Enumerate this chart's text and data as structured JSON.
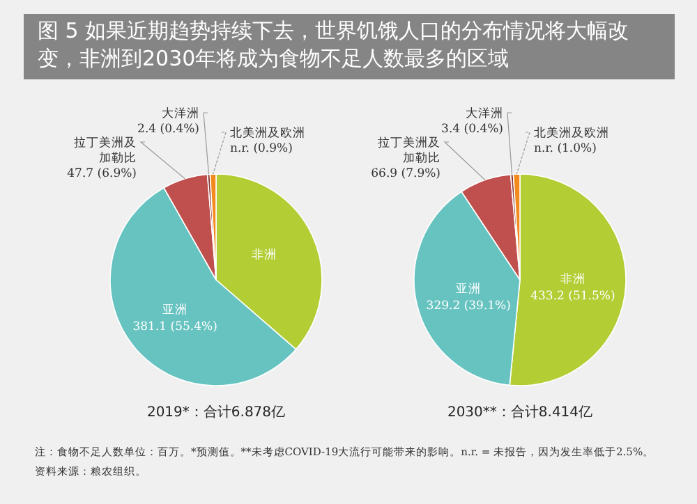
{
  "chart_data": [
    {
      "type": "other",
      "title": "图 5  如果近期趋势持续下去，世界饥饿人口的分布情况将大幅改变，非洲到2030年将成为食物不足人数最多的区域"
    },
    {
      "type": "pie",
      "title": "2019*：合计6.878亿",
      "categories": [
        "非洲",
        "亚洲",
        "拉丁美洲及加勒比",
        "大洋洲",
        "北美洲及欧洲"
      ],
      "values": [
        36.4,
        55.4,
        6.9,
        0.4,
        0.9
      ],
      "colors": [
        "#b3cd35",
        "#67c3c0",
        "#c0504d",
        "#8b3a3a",
        "#f28a1e"
      ],
      "value_labels": [
        null,
        "381.1 (55.4%)",
        "47.7 (6.9%)",
        "2.4 (0.4%)",
        "n.r. (0.9%)"
      ]
    },
    {
      "type": "pie",
      "title": "2030**：合计8.414亿",
      "categories": [
        "非洲",
        "亚洲",
        "拉丁美洲及加勒比",
        "大洋洲",
        "北美洲及欧洲"
      ],
      "values": [
        51.5,
        39.1,
        7.9,
        0.4,
        1.0
      ],
      "colors": [
        "#b3cd35",
        "#67c3c0",
        "#c0504d",
        "#8b3a3a",
        "#f28a1e"
      ],
      "value_labels": [
        "433.2 (51.5%)",
        "329.2 (39.1%)",
        "66.9 (7.9%)",
        "3.4 (0.4%)",
        "n.r. (1.0%)"
      ]
    },
    {
      "type": "other",
      "annotations": [
        "注：食物不足人数单位：百万。*预测值。**未考虑COVID-19大流行可能带来的影响。n.r. = 未报告，因为发生率低于2.5%。",
        "资料来源：粮农组织。"
      ]
    }
  ]
}
